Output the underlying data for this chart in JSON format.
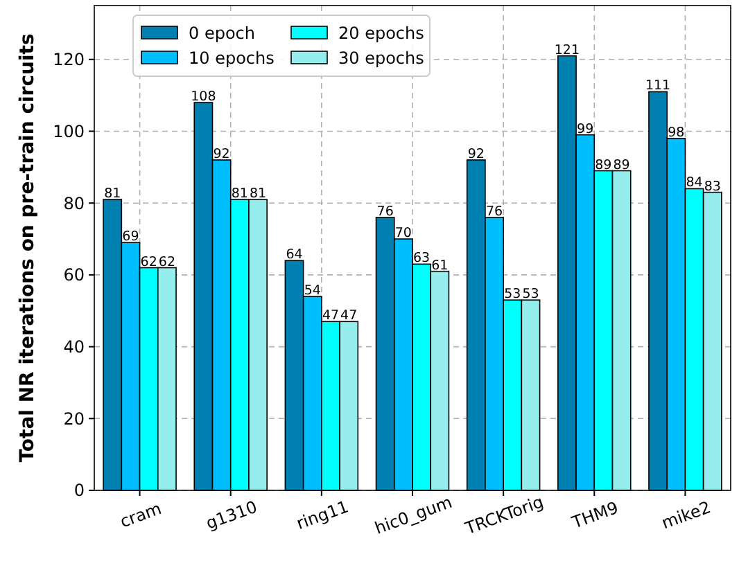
{
  "chart_data": {
    "type": "bar",
    "ylabel": "Total NR iterations on pre-train circuits",
    "categories": [
      "cram",
      "g1310",
      "ring11",
      "hic0_gum",
      "TRCKTorig",
      "THM9",
      "mike2"
    ],
    "series": [
      {
        "name": "0 epoch",
        "color": "#0080b0",
        "values": [
          81,
          108,
          64,
          76,
          92,
          121,
          111
        ]
      },
      {
        "name": "10 epochs",
        "color": "#00bfff",
        "values": [
          69,
          92,
          54,
          70,
          76,
          99,
          98
        ]
      },
      {
        "name": "20 epochs",
        "color": "#00ffff",
        "values": [
          62,
          81,
          47,
          63,
          53,
          89,
          84
        ]
      },
      {
        "name": "30 epochs",
        "color": "#96eded",
        "values": [
          62,
          81,
          47,
          61,
          53,
          89,
          83
        ]
      }
    ],
    "ylim": [
      0,
      135
    ],
    "yticks": [
      0,
      20,
      40,
      60,
      80,
      100,
      120
    ],
    "grid": true,
    "legend": "top left",
    "data_labels": true
  }
}
